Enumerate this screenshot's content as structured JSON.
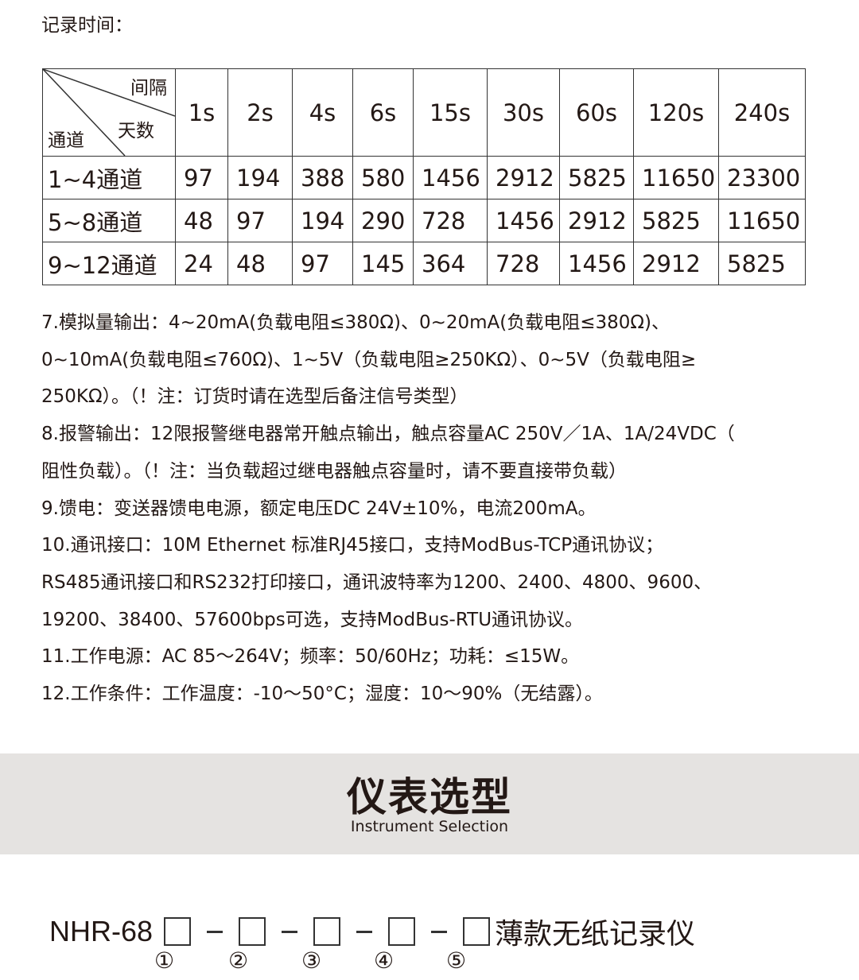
{
  "record_time_label": "记录时间：",
  "table": {
    "corner": {
      "top": "间隔",
      "middle": "天数",
      "bottom": "通道"
    },
    "intervals": [
      "1s",
      "2s",
      "4s",
      "6s",
      "15s",
      "30s",
      "60s",
      "120s",
      "240s"
    ],
    "rows": [
      {
        "channel": "1~4通道",
        "values": [
          "97",
          "194",
          "388",
          "580",
          "1456",
          "2912",
          "5825",
          "11650",
          "23300"
        ]
      },
      {
        "channel": "5~8通道",
        "values": [
          "48",
          "97",
          "194",
          "290",
          "728",
          "1456",
          "2912",
          "5825",
          "11650"
        ]
      },
      {
        "channel": "9~12通道",
        "values": [
          "24",
          "48",
          "97",
          "145",
          "364",
          "728",
          "1456",
          "2912",
          "5825"
        ]
      }
    ]
  },
  "specs": [
    "7.模拟量输出：4~20mA(负载电阻≤380Ω)、0~20mA(负载电阻≤380Ω)、",
    "0~10mA(负载电阻≤760Ω)、1~5V（负载电阻≥250KΩ）、0~5V（负载电阻≥",
    "250KΩ）。（！注：订货时请在选型后备注信号类型）",
    "8.报警输出：12限报警继电器常开触点输出，触点容量AC 250V／1A、1A/24VDC（",
    "阻性负载）。（！注：当负载超过继电器触点容量时，请不要直接带负载）",
    "9.馈电：变送器馈电电源，额定电压DC 24V±10%，电流200mA。",
    "10.通讯接口：10M  Ethernet 标准RJ45接口，支持ModBus-TCP通讯协议；",
    "RS485通讯接口和RS232打印接口，通讯波特率为1200、2400、4800、9600、",
    "19200、38400、57600bps可选，支持ModBus-RTU通讯协议。",
    "11.工作电源：AC 85～264V；频率：50/60Hz；功耗：≤15W。",
    "12.工作条件：工作温度：-10～50°C；湿度：10～90%（无结露）。"
  ],
  "section": {
    "title": "仪表选型",
    "subtitle": "Instrument Selection"
  },
  "model": {
    "prefix": "NHR-68",
    "suffix": "薄款无纸记录仪",
    "markers": [
      "①",
      "②",
      "③",
      "④",
      "⑤"
    ]
  }
}
